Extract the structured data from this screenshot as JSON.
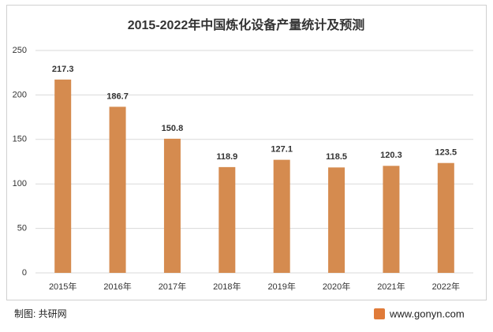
{
  "chart_data": {
    "type": "bar",
    "title": "2015-2022年中国炼化设备产量统计及预测",
    "categories": [
      "2015年",
      "2016年",
      "2017年",
      "2018年",
      "2019年",
      "2020年",
      "2021年",
      "2022年"
    ],
    "values": [
      217.3,
      186.7,
      150.8,
      118.9,
      127.1,
      118.5,
      120.3,
      123.5
    ],
    "color": "#d58b4f",
    "ylim": [
      0,
      250
    ],
    "yticks": [
      0,
      50,
      100,
      150,
      200,
      250
    ],
    "grid": true
  },
  "footer": {
    "source": "制图: 共研网",
    "website": "www.gonyn.com"
  }
}
